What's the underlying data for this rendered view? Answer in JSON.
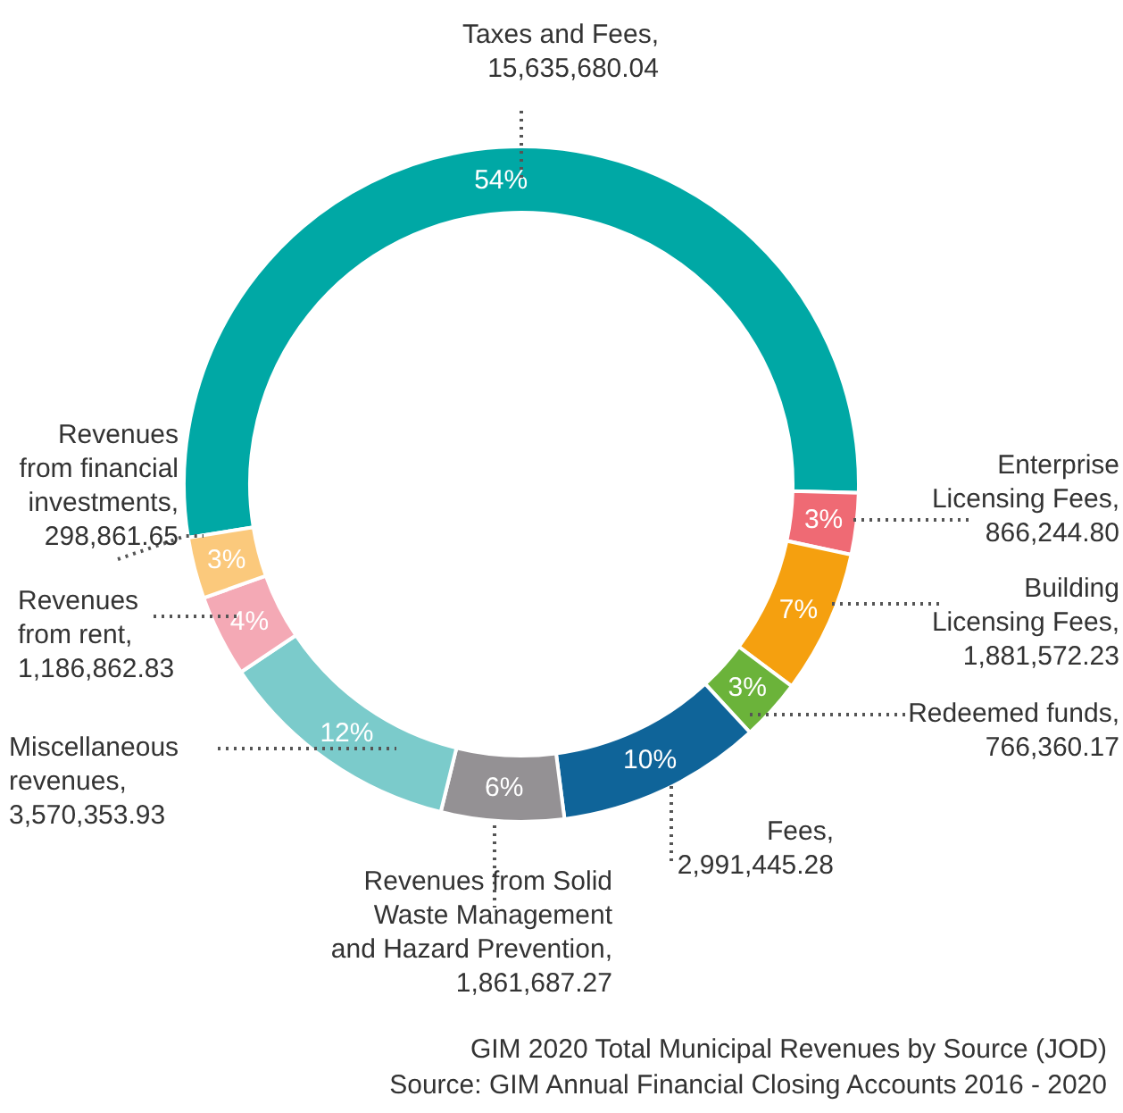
{
  "chart_data": {
    "type": "donut",
    "categories": [
      "Taxes and Fees, 15,635,680.04",
      "Enterprise Licensing Fees, 866,244.80",
      "Building Licensing Fees, 1,881,572.23",
      "Redeemed funds, 766,360.17",
      "Fees, 2,991,445.28",
      "Revenues from Solid Waste Management and Hazard Prevention, 1,861,687.27",
      "Miscellaneous revenues, 3,570,353.93",
      "Revenues from rent, 1,186,862.83",
      "Revenues from financial investments, 298,861.65"
    ],
    "values": [
      54,
      3,
      7,
      3,
      10,
      6,
      12,
      4,
      3
    ],
    "colors": [
      "#00a8a5",
      "#ef6a74",
      "#f5a00f",
      "#6bb33a",
      "#0f6499",
      "#949194",
      "#7bcbcb",
      "#f4a9b5",
      "#fbc97c"
    ],
    "value_labels": [
      "54%",
      "3%",
      "7%",
      "3%",
      "10%",
      "6%",
      "12%",
      "4%",
      "3%"
    ],
    "annotations": [
      "GIM 2020 Total Municipal Revenues by Source (JOD)",
      "Source: GIM Annual Financial Closing Accounts 2016 - 2020"
    ]
  }
}
